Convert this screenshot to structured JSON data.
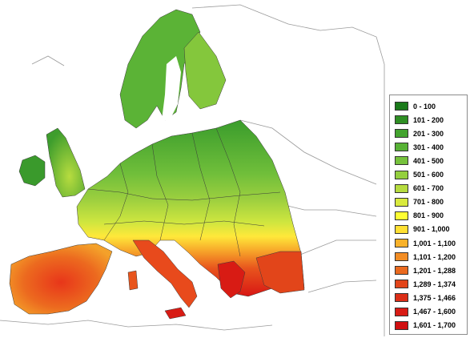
{
  "map": {
    "legend": [
      {
        "label": "0 - 100",
        "color": "#1a7a1a"
      },
      {
        "label": "101 - 200",
        "color": "#2f8f24"
      },
      {
        "label": "201 - 300",
        "color": "#43a32e"
      },
      {
        "label": "301 - 400",
        "color": "#58b236"
      },
      {
        "label": "401 - 500",
        "color": "#76c23c"
      },
      {
        "label": "501 - 600",
        "color": "#94cf3e"
      },
      {
        "label": "601 - 700",
        "color": "#b6dc3f"
      },
      {
        "label": "701 - 800",
        "color": "#d9ea3d"
      },
      {
        "label": "801 - 900",
        "color": "#ffff33"
      },
      {
        "label": "901 - 1,000",
        "color": "#ffe033"
      },
      {
        "label": "1,001 - 1,100",
        "color": "#f9b22a"
      },
      {
        "label": "1,101 - 1,200",
        "color": "#f28d24"
      },
      {
        "label": "1,201 - 1,288",
        "color": "#ea6a1f"
      },
      {
        "label": "1,289 - 1,374",
        "color": "#e2451a"
      },
      {
        "label": "1,375 - 1,466",
        "color": "#db2e17"
      },
      {
        "label": "1,467 - 1,600",
        "color": "#d81b14"
      },
      {
        "label": "1,601 - 1,700",
        "color": "#d00f10"
      }
    ]
  }
}
